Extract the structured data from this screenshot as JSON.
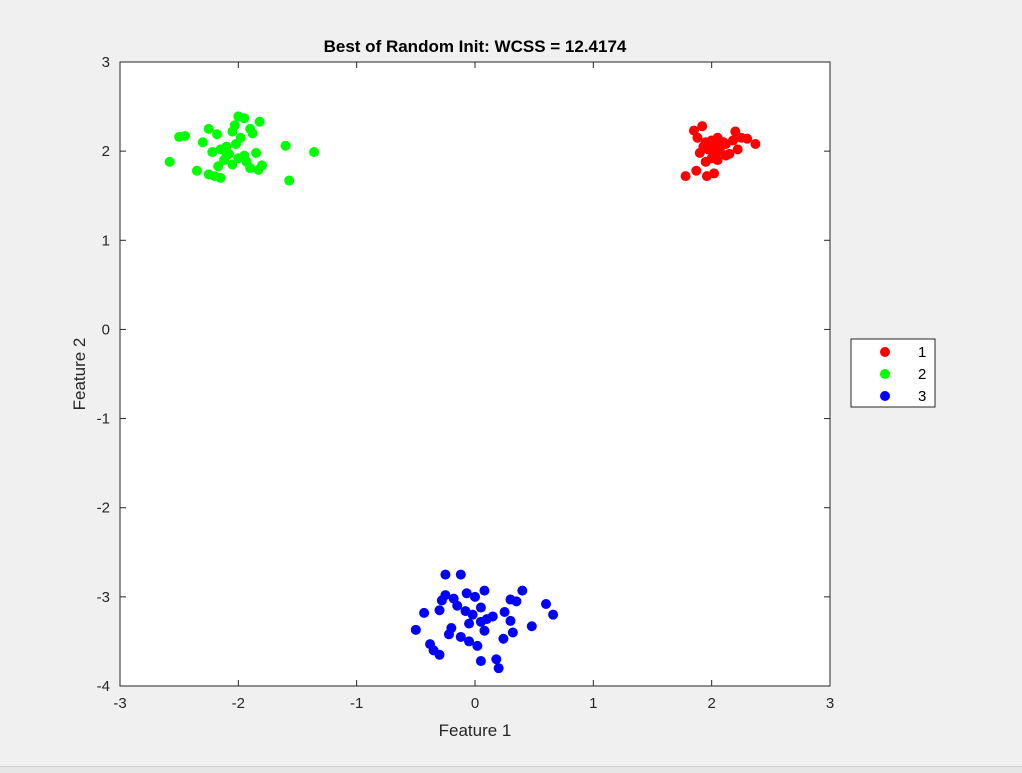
{
  "chart_data": {
    "type": "scatter",
    "title": "Best of Random Init: WCSS = 12.4174",
    "xlabel": "Feature 1",
    "ylabel": "Feature 2",
    "xlim": [
      -3,
      3
    ],
    "ylim": [
      -4,
      3
    ],
    "xticks": [
      "-3",
      "-2",
      "-1",
      "0",
      "1",
      "2",
      "3"
    ],
    "yticks": [
      "3",
      "2",
      "1",
      "0",
      "-1",
      "-2",
      "-3",
      "-4"
    ],
    "grid": false,
    "legend_position": "outside-right",
    "series": [
      {
        "name": "1",
        "color": "#ff0000",
        "points": [
          [
            1.85,
            2.23
          ],
          [
            1.92,
            2.28
          ],
          [
            1.88,
            2.15
          ],
          [
            1.95,
            2.1
          ],
          [
            2.0,
            2.12
          ],
          [
            2.05,
            2.15
          ],
          [
            2.1,
            2.1
          ],
          [
            2.02,
            2.05
          ],
          [
            1.97,
            2.02
          ],
          [
            2.07,
            2.0
          ],
          [
            1.9,
            1.98
          ],
          [
            2.12,
            1.95
          ],
          [
            2.0,
            1.92
          ],
          [
            1.95,
            1.88
          ],
          [
            2.05,
            1.9
          ],
          [
            2.15,
            1.97
          ],
          [
            2.2,
            2.22
          ],
          [
            2.25,
            2.15
          ],
          [
            2.3,
            2.14
          ],
          [
            2.37,
            2.08
          ],
          [
            1.87,
            1.78
          ],
          [
            1.96,
            1.72
          ],
          [
            2.02,
            1.75
          ],
          [
            1.78,
            1.72
          ],
          [
            2.08,
            2.06
          ],
          [
            1.93,
            2.05
          ],
          [
            2.22,
            2.02
          ],
          [
            2.12,
            2.08
          ],
          [
            2.18,
            2.12
          ],
          [
            2.03,
            1.98
          ]
        ]
      },
      {
        "name": "2",
        "color": "#00ff00",
        "points": [
          [
            -2.0,
            2.39
          ],
          [
            -1.95,
            2.37
          ],
          [
            -1.82,
            2.33
          ],
          [
            -2.25,
            2.25
          ],
          [
            -2.18,
            2.19
          ],
          [
            -1.9,
            2.25
          ],
          [
            -2.05,
            2.22
          ],
          [
            -1.98,
            2.15
          ],
          [
            -1.88,
            2.2
          ],
          [
            -2.45,
            2.17
          ],
          [
            -2.5,
            2.16
          ],
          [
            -2.3,
            2.1
          ],
          [
            -2.1,
            2.05
          ],
          [
            -2.02,
            2.08
          ],
          [
            -2.15,
            2.02
          ],
          [
            -1.6,
            2.06
          ],
          [
            -1.36,
            1.99
          ],
          [
            -2.22,
            1.99
          ],
          [
            -2.08,
            1.97
          ],
          [
            -1.95,
            1.95
          ],
          [
            -1.85,
            1.98
          ],
          [
            -2.0,
            1.92
          ],
          [
            -1.93,
            1.88
          ],
          [
            -2.12,
            1.9
          ],
          [
            -2.05,
            1.85
          ],
          [
            -2.58,
            1.88
          ],
          [
            -2.17,
            1.83
          ],
          [
            -1.9,
            1.81
          ],
          [
            -2.35,
            1.78
          ],
          [
            -2.25,
            1.74
          ],
          [
            -2.2,
            1.72
          ],
          [
            -2.15,
            1.7
          ],
          [
            -1.83,
            1.79
          ],
          [
            -1.57,
            1.67
          ],
          [
            -1.8,
            1.84
          ],
          [
            -2.03,
            2.29
          ],
          [
            -2.1,
            1.95
          ]
        ]
      },
      {
        "name": "3",
        "color": "#0000ff",
        "points": [
          [
            -0.25,
            -2.75
          ],
          [
            -0.12,
            -2.75
          ],
          [
            0.4,
            -2.93
          ],
          [
            0.08,
            -2.93
          ],
          [
            -0.07,
            -2.96
          ],
          [
            -0.25,
            -2.98
          ],
          [
            -0.18,
            -3.02
          ],
          [
            -0.28,
            -3.04
          ],
          [
            0.0,
            -3.0
          ],
          [
            0.3,
            -3.03
          ],
          [
            0.35,
            -3.05
          ],
          [
            0.6,
            -3.08
          ],
          [
            -0.15,
            -3.1
          ],
          [
            0.05,
            -3.12
          ],
          [
            -0.3,
            -3.15
          ],
          [
            -0.43,
            -3.18
          ],
          [
            -0.08,
            -3.16
          ],
          [
            0.25,
            -3.17
          ],
          [
            0.66,
            -3.2
          ],
          [
            -0.02,
            -3.2
          ],
          [
            0.15,
            -3.22
          ],
          [
            0.1,
            -3.25
          ],
          [
            0.3,
            -3.27
          ],
          [
            0.05,
            -3.28
          ],
          [
            0.48,
            -3.33
          ],
          [
            -0.05,
            -3.3
          ],
          [
            -0.2,
            -3.35
          ],
          [
            0.08,
            -3.38
          ],
          [
            0.32,
            -3.4
          ],
          [
            -0.5,
            -3.37
          ],
          [
            -0.12,
            -3.45
          ],
          [
            -0.22,
            -3.42
          ],
          [
            0.24,
            -3.47
          ],
          [
            -0.05,
            -3.5
          ],
          [
            -0.38,
            -3.53
          ],
          [
            0.02,
            -3.55
          ],
          [
            -0.35,
            -3.6
          ],
          [
            -0.3,
            -3.65
          ],
          [
            0.18,
            -3.7
          ],
          [
            0.05,
            -3.72
          ],
          [
            0.2,
            -3.8
          ]
        ]
      }
    ]
  }
}
